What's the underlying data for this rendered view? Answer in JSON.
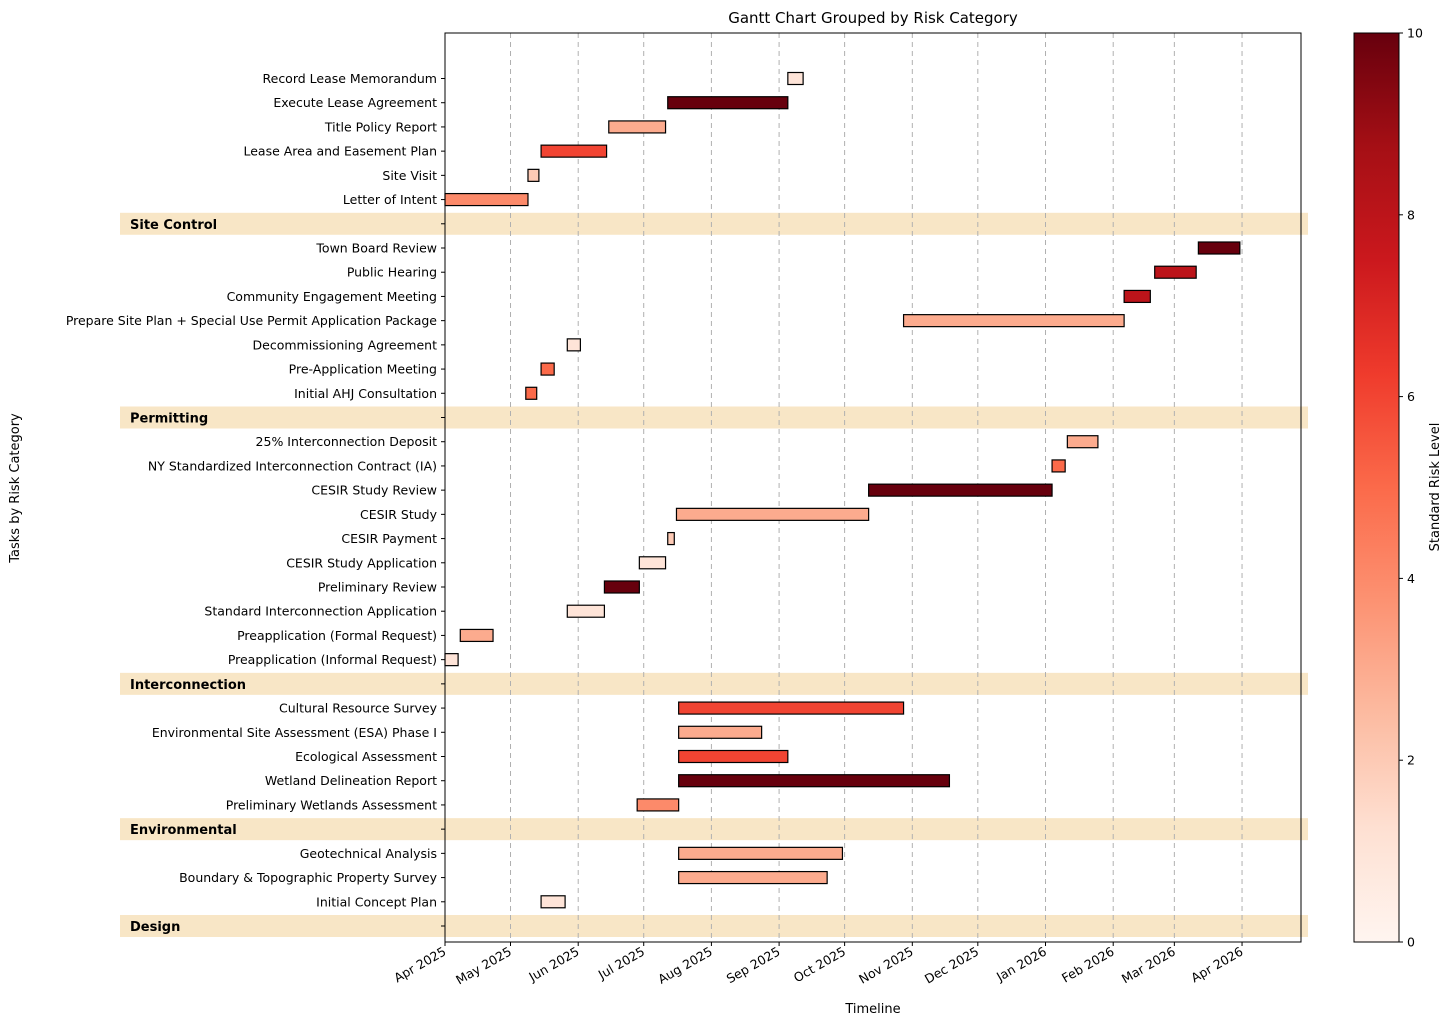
{
  "chart_data": {
    "type": "gantt",
    "title": "Gantt Chart Grouped by Risk Category",
    "xlabel": "Timeline",
    "ylabel": "Tasks by Risk Category",
    "x_ticks": [
      "Apr 2025",
      "May 2025",
      "Jun 2025",
      "Jul 2025",
      "Aug 2025",
      "Sep 2025",
      "Oct 2025",
      "Nov 2025",
      "Dec 2025",
      "Jan 2026",
      "Feb 2026",
      "Mar 2026",
      "Apr 2026"
    ],
    "x_range": [
      "2025-04-01",
      "2026-04-28"
    ],
    "colorbar": {
      "label": "Standard Risk Level",
      "min": 0,
      "max": 10,
      "ticks": [
        "0",
        "2",
        "4",
        "6",
        "8",
        "10"
      ],
      "colormap": "Reds"
    },
    "grid": "vertical dashed",
    "categories": [
      {
        "name": "Site Control",
        "tasks": [
          {
            "task": "Record Lease Memorandum",
            "start": "2025-09-05",
            "end": "2025-09-12",
            "risk": 1
          },
          {
            "task": "Execute Lease Agreement",
            "start": "2025-07-12",
            "end": "2025-09-05",
            "risk": 10
          },
          {
            "task": "Title Policy Report",
            "start": "2025-06-15",
            "end": "2025-07-11",
            "risk": 3
          },
          {
            "task": "Lease Area and Easement Plan",
            "start": "2025-05-15",
            "end": "2025-06-14",
            "risk": 6
          },
          {
            "task": "Site Visit",
            "start": "2025-05-09",
            "end": "2025-05-14",
            "risk": 2
          },
          {
            "task": "Letter of Intent",
            "start": "2025-04-01",
            "end": "2025-05-09",
            "risk": 4
          }
        ]
      },
      {
        "name": "Permitting",
        "tasks": [
          {
            "task": "Town Board Review",
            "start": "2026-03-12",
            "end": "2026-03-31",
            "risk": 10
          },
          {
            "task": "Public Hearing",
            "start": "2026-02-20",
            "end": "2026-03-11",
            "risk": 8
          },
          {
            "task": "Community Engagement Meeting",
            "start": "2026-02-06",
            "end": "2026-02-18",
            "risk": 8
          },
          {
            "task": "Prepare Site Plan + Special Use Permit Application Package",
            "start": "2025-10-28",
            "end": "2026-02-06",
            "risk": 3
          },
          {
            "task": "Decommissioning Agreement",
            "start": "2025-05-27",
            "end": "2025-06-02",
            "risk": 1
          },
          {
            "task": "Pre-Application Meeting",
            "start": "2025-05-15",
            "end": "2025-05-21",
            "risk": 5
          },
          {
            "task": "Initial AHJ Consultation",
            "start": "2025-05-08",
            "end": "2025-05-13",
            "risk": 5
          }
        ]
      },
      {
        "name": "Interconnection",
        "tasks": [
          {
            "task": "25% Interconnection Deposit",
            "start": "2026-01-11",
            "end": "2026-01-25",
            "risk": 3
          },
          {
            "task": "NY Standardized Interconnection Contract (IA)",
            "start": "2026-01-04",
            "end": "2026-01-10",
            "risk": 5
          },
          {
            "task": "CESIR Study Review",
            "start": "2025-10-12",
            "end": "2026-01-04",
            "risk": 10
          },
          {
            "task": "CESIR Study",
            "start": "2025-07-16",
            "end": "2025-10-12",
            "risk": 3
          },
          {
            "task": "CESIR Payment",
            "start": "2025-07-12",
            "end": "2025-07-15",
            "risk": 2
          },
          {
            "task": "CESIR Study Application",
            "start": "2025-06-29",
            "end": "2025-07-11",
            "risk": 1
          },
          {
            "task": "Preliminary Review",
            "start": "2025-06-13",
            "end": "2025-06-29",
            "risk": 10
          },
          {
            "task": "Standard Interconnection Application",
            "start": "2025-05-27",
            "end": "2025-06-13",
            "risk": 1
          },
          {
            "task": "Preapplication (Formal Request)",
            "start": "2025-04-08",
            "end": "2025-04-23",
            "risk": 3
          },
          {
            "task": "Preapplication (Informal Request)",
            "start": "2025-04-01",
            "end": "2025-04-07",
            "risk": 1
          }
        ]
      },
      {
        "name": "Environmental",
        "tasks": [
          {
            "task": "Cultural Resource Survey",
            "start": "2025-07-17",
            "end": "2025-10-28",
            "risk": 6
          },
          {
            "task": "Environmental Site Assessment (ESA) Phase I",
            "start": "2025-07-17",
            "end": "2025-08-24",
            "risk": 3
          },
          {
            "task": "Ecological Assessment",
            "start": "2025-07-17",
            "end": "2025-09-05",
            "risk": 6
          },
          {
            "task": "Wetland Delineation Report",
            "start": "2025-07-17",
            "end": "2025-11-18",
            "risk": 10
          },
          {
            "task": "Preliminary Wetlands Assessment",
            "start": "2025-06-28",
            "end": "2025-07-17",
            "risk": 4
          }
        ]
      },
      {
        "name": "Design",
        "tasks": [
          {
            "task": "Geotechnical Analysis",
            "start": "2025-07-17",
            "end": "2025-09-30",
            "risk": 3
          },
          {
            "task": "Boundary & Topographic Property Survey",
            "start": "2025-07-17",
            "end": "2025-09-23",
            "risk": 3
          },
          {
            "task": "Initial Concept Plan",
            "start": "2025-05-15",
            "end": "2025-05-26",
            "risk": 1
          }
        ]
      }
    ]
  }
}
